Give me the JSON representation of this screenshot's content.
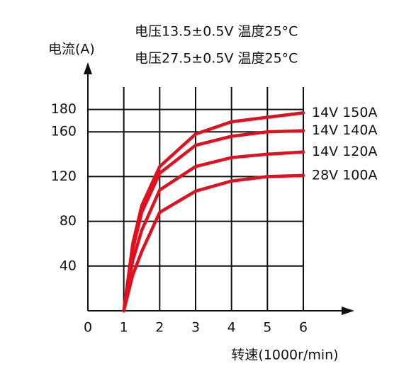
{
  "chart_data": {
    "type": "line",
    "title": "电压13.5±0.5V 温度25°C",
    "subtitle": "电压27.5±0.5V 温度25°C",
    "y_label": "电流(A)",
    "x_label": "转速(1000r/min)",
    "x": [
      1,
      1.25,
      1.5,
      2,
      3,
      4,
      5,
      6
    ],
    "series": [
      {
        "name": "14V 150A",
        "color": "#e0101e",
        "values": [
          0,
          60,
          94,
          129,
          158,
          169,
          173,
          177
        ]
      },
      {
        "name": "14V 140A",
        "color": "#e0101e",
        "values": [
          0,
          55,
          88,
          123,
          148,
          156,
          160,
          161
        ]
      },
      {
        "name": "14V 120A",
        "color": "#e0101e",
        "values": [
          0,
          45,
          72,
          108,
          129,
          137,
          140,
          142
        ]
      },
      {
        "name": "28V 100A",
        "color": "#e0101e",
        "values": [
          0,
          32,
          53,
          88,
          107,
          116,
          120,
          121
        ]
      }
    ],
    "xlim": [
      0,
      6
    ],
    "xticks": [
      0,
      1,
      2,
      3,
      4,
      5,
      6
    ],
    "ylim": [
      0,
      200
    ],
    "yticks": [
      40,
      80,
      120,
      160,
      180
    ],
    "grid": true
  }
}
